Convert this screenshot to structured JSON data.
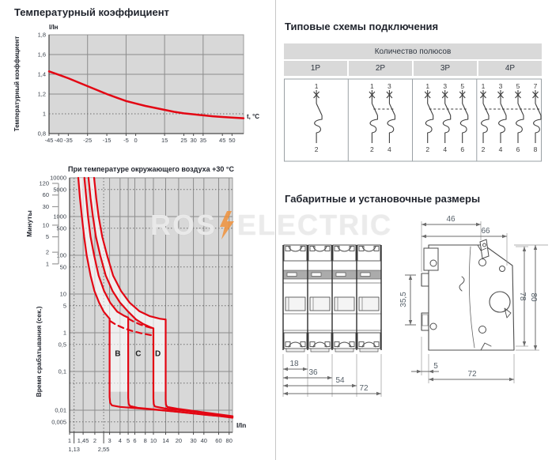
{
  "page": {
    "watermark": {
      "part1": "ROS",
      "part2": "ELECTRIC",
      "bolt_color": "#f0923c"
    },
    "accent_red": "#e30613"
  },
  "sections": {
    "temp_coeff": {
      "title": "Температурный коэффициент"
    },
    "schemes": {
      "title": "Типовые схемы подключения",
      "table_header": "Количество полюсов",
      "columns": [
        "1P",
        "2P",
        "3P",
        "4P"
      ],
      "poles": [
        {
          "top": [
            "1"
          ],
          "bottom": [
            "2"
          ]
        },
        {
          "top": [
            "1",
            "3"
          ],
          "bottom": [
            "2",
            "4"
          ]
        },
        {
          "top": [
            "1",
            "3",
            "5"
          ],
          "bottom": [
            "2",
            "4",
            "6"
          ]
        },
        {
          "top": [
            "1",
            "3",
            "5",
            "7"
          ],
          "bottom": [
            "2",
            "4",
            "6",
            "8"
          ]
        }
      ]
    },
    "dimensions": {
      "title": "Габаритные и установочные размеры",
      "front": {
        "widths": [
          "18",
          "36",
          "54",
          "72"
        ],
        "height_label": "35,5"
      },
      "side": {
        "width_top": "46",
        "width_full": "66",
        "height_inner": "78",
        "height_full": "80",
        "clip_depth": "5",
        "depth": "72"
      }
    }
  },
  "chart_data": [
    {
      "type": "line",
      "title": "Температурный коэффициент",
      "y_unit_label": "I/Iн",
      "x_unit_label": "t, °C",
      "y_axis_label": "Температурный коэффициент",
      "x_ticks": [
        -45,
        -40,
        -35,
        -25,
        -15,
        -5,
        0,
        15,
        25,
        30,
        35,
        45,
        50
      ],
      "y_ticks": [
        0.8,
        1,
        1.2,
        1.4,
        1.6,
        1.8
      ],
      "xlim": [
        -45,
        56
      ],
      "ylim": [
        0.8,
        1.8
      ],
      "grid_x": [
        -25,
        -5,
        15,
        35
      ],
      "grid_y_solid": [
        1.2,
        1.4,
        1.6
      ],
      "grid_y_dotted": [
        1
      ],
      "series": [
        {
          "name": "temperature-coefficient",
          "points": [
            [
              -45,
              1.43
            ],
            [
              -40,
              1.395
            ],
            [
              -35,
              1.36
            ],
            [
              -30,
              1.32
            ],
            [
              -25,
              1.28
            ],
            [
              -20,
              1.24
            ],
            [
              -15,
              1.2
            ],
            [
              -10,
              1.165
            ],
            [
              -5,
              1.13
            ],
            [
              0,
              1.105
            ],
            [
              5,
              1.08
            ],
            [
              10,
              1.06
            ],
            [
              15,
              1.04
            ],
            [
              20,
              1.02
            ],
            [
              25,
              1.005
            ],
            [
              30,
              0.995
            ],
            [
              35,
              0.985
            ],
            [
              40,
              0.975
            ],
            [
              45,
              0.968
            ],
            [
              50,
              0.962
            ],
            [
              56,
              0.955
            ]
          ]
        }
      ]
    },
    {
      "type": "line",
      "scale": "log-log",
      "title": "При температуре окружающего воздуха +30 °C",
      "x_label": "I/In",
      "y_label": "Время срабатывания (сек.)",
      "y2_label": "Минуты",
      "x_ticks": [
        1,
        1.45,
        2,
        3,
        4,
        5,
        6,
        8,
        10,
        14,
        20,
        30,
        40,
        60,
        80
      ],
      "x_subticks": [
        1.13,
        2.55
      ],
      "y_ticks": [
        10000,
        5000,
        1000,
        500,
        100,
        50,
        10,
        5,
        1,
        0.5,
        0.1,
        0.01,
        0.005
      ],
      "y_grid_extra": [
        0.05
      ],
      "minute_ticks": [
        120,
        60,
        30,
        10,
        5,
        2,
        1
      ],
      "zone_labels": [
        {
          "text": "B",
          "x": 3.75,
          "t": 0.25
        },
        {
          "text": "C",
          "x": 6.6,
          "t": 0.25
        },
        {
          "text": "D",
          "x": 11.3,
          "t": 0.25
        }
      ],
      "curves": {
        "s1": [
          [
            1.27,
            10000
          ],
          [
            1.33,
            3000
          ],
          [
            1.4,
            1000
          ],
          [
            1.49,
            300
          ],
          [
            1.6,
            100
          ],
          [
            1.78,
            30
          ],
          [
            1.98,
            12
          ],
          [
            2.25,
            6
          ],
          [
            2.55,
            3.5
          ],
          [
            3,
            2.3
          ]
        ],
        "s2": [
          [
            1.5,
            10000
          ],
          [
            1.58,
            3000
          ],
          [
            1.66,
            1000
          ],
          [
            1.78,
            300
          ],
          [
            1.96,
            100
          ],
          [
            2.22,
            30
          ],
          [
            2.58,
            12
          ],
          [
            3.05,
            6
          ],
          [
            3.7,
            3.5
          ],
          [
            4.4,
            2.8
          ],
          [
            5,
            2.45
          ]
        ],
        "s3": [
          [
            1.68,
            10000
          ],
          [
            1.78,
            3000
          ],
          [
            1.9,
            1000
          ],
          [
            2.06,
            300
          ],
          [
            2.32,
            100
          ],
          [
            2.7,
            30
          ],
          [
            3.25,
            12
          ],
          [
            4,
            6
          ],
          [
            5,
            3.5
          ],
          [
            6.2,
            2.2
          ],
          [
            7.5,
            1.7
          ],
          [
            9,
            1.42
          ],
          [
            9.95,
            1.3
          ]
        ],
        "s4": [
          [
            1.96,
            10000
          ],
          [
            2.08,
            3000
          ],
          [
            2.22,
            1000
          ],
          [
            2.45,
            300
          ],
          [
            2.8,
            100
          ],
          [
            3.3,
            30
          ],
          [
            4.1,
            12
          ],
          [
            5.2,
            6
          ],
          [
            6.8,
            3.6
          ],
          [
            9,
            2.7
          ],
          [
            12,
            2.3
          ],
          [
            13.95,
            2.2
          ]
        ],
        "v3": [
          [
            3,
            2.3
          ],
          [
            3,
            0.022
          ],
          [
            3.05,
            0.0155
          ],
          [
            3.2,
            0.0133
          ],
          [
            4,
            0.0122
          ],
          [
            10,
            0.0104
          ],
          [
            20,
            0.009
          ],
          [
            40,
            0.0077
          ],
          [
            88,
            0.0066
          ]
        ],
        "v5": [
          [
            5,
            2.45
          ],
          [
            5,
            0.021
          ],
          [
            5.06,
            0.0148
          ],
          [
            5.25,
            0.0128
          ],
          [
            6.5,
            0.0115
          ],
          [
            14,
            0.0098
          ],
          [
            30,
            0.0083
          ],
          [
            60,
            0.0071
          ],
          [
            88,
            0.0064
          ]
        ],
        "v10": [
          [
            10,
            1.3
          ],
          [
            10,
            0.02
          ],
          [
            10.08,
            0.0143
          ],
          [
            10.4,
            0.0125
          ],
          [
            14,
            0.011
          ],
          [
            30,
            0.0092
          ],
          [
            60,
            0.0077
          ],
          [
            88,
            0.0069
          ]
        ],
        "v14": [
          [
            14,
            2.2
          ],
          [
            14,
            0.019
          ],
          [
            14.1,
            0.014
          ],
          [
            14.6,
            0.0122
          ],
          [
            20,
            0.0108
          ],
          [
            40,
            0.0088
          ],
          [
            88,
            0.007
          ]
        ],
        "dash1": [
          [
            3.05,
            2
          ],
          [
            3.6,
            1.6
          ],
          [
            4.4,
            1.32
          ],
          [
            5.5,
            1.12
          ],
          [
            7,
            0.98
          ],
          [
            8.5,
            0.9
          ],
          [
            9.9,
            0.85
          ]
        ],
        "dash2": [
          [
            5.05,
            2.3
          ],
          [
            5.8,
            1.95
          ],
          [
            7,
            1.62
          ],
          [
            8.2,
            1.45
          ],
          [
            9.9,
            1.3
          ]
        ]
      }
    }
  ]
}
